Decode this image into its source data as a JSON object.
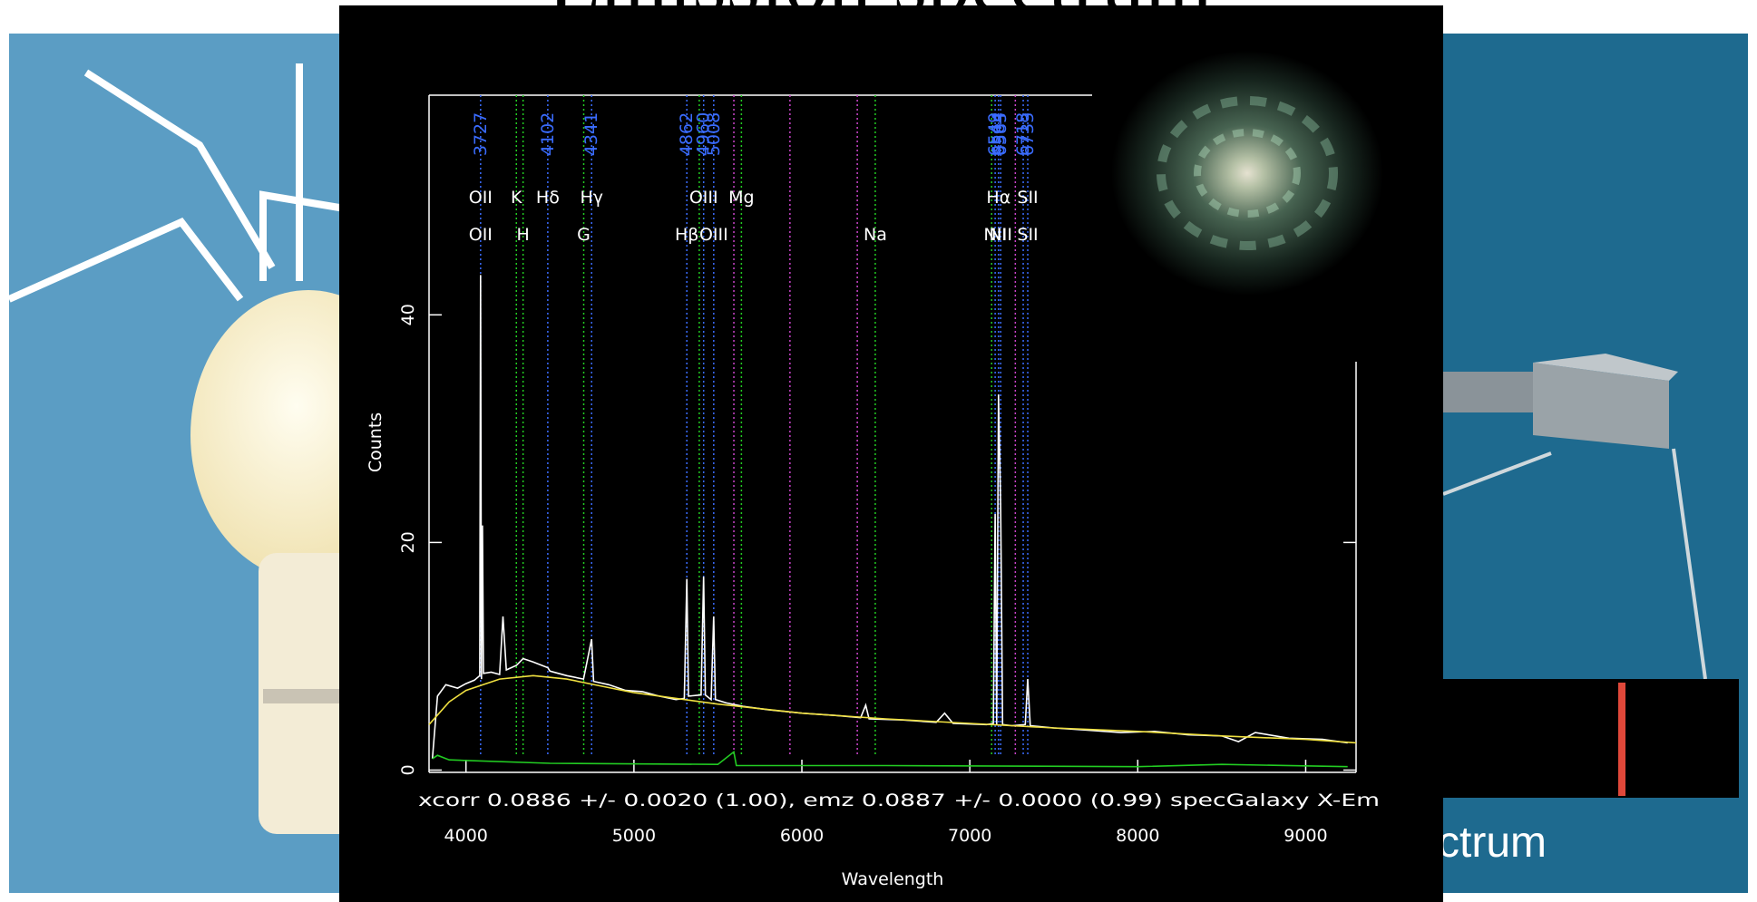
{
  "slide": {
    "title": "Emission spectrum",
    "caption": "Spectrum"
  },
  "chart_data": {
    "type": "line",
    "x_label": "Wavelength",
    "y_label": "Counts",
    "annotation": "xcorr  0.0886 +/- 0.0020 (1.00), emz  0.0887 +/- 0.0000 (0.99) specGalaxy X-Em",
    "xlim": [
      3780,
      9300
    ],
    "ylim": [
      -0.2,
      59.3
    ],
    "xticks": [
      4000,
      5000,
      6000,
      7000,
      8000,
      9000
    ],
    "yticks": [
      0,
      20,
      40
    ],
    "series": [
      {
        "color": "#ffffff",
        "x": [
          3800,
          3830,
          3880,
          3950,
          4000,
          4050,
          4082,
          4087,
          4092,
          4098,
          4104,
          4150,
          4200,
          4220,
          4240,
          4300,
          4340,
          4400,
          4487,
          4500,
          4600,
          4700,
          4748,
          4760,
          4850,
          4950,
          5050,
          5150,
          5250,
          5300,
          5315,
          5325,
          5400,
          5415,
          5425,
          5460,
          5475,
          5485,
          5550,
          5650,
          5800,
          6000,
          6200,
          6350,
          6380,
          6400,
          6600,
          6800,
          6850,
          6900,
          7100,
          7140,
          7151,
          7160,
          7171,
          7184,
          7195,
          7250,
          7330,
          7345,
          7360,
          7500,
          7700,
          7900,
          8100,
          8300,
          8500,
          8600,
          8700,
          8900,
          9100,
          9250
        ],
        "values": [
          1,
          6.5,
          7.5,
          7.2,
          7.6,
          7.9,
          8.3,
          43.5,
          8,
          21.5,
          8.5,
          8.6,
          8.4,
          13.5,
          8.8,
          9.2,
          9.8,
          9.5,
          9,
          8.7,
          8.3,
          8,
          11.5,
          7.8,
          7.5,
          7,
          6.9,
          6.5,
          6.2,
          6.3,
          16.8,
          6.5,
          6.6,
          17,
          6.6,
          6.2,
          13.5,
          6.2,
          5.9,
          5.6,
          5.3,
          5,
          4.8,
          4.6,
          5.7,
          4.5,
          4.4,
          4.2,
          5,
          4.1,
          4,
          4.1,
          22.5,
          4,
          33,
          23,
          4,
          3.9,
          4,
          8,
          3.9,
          3.7,
          3.5,
          3.3,
          3.4,
          3.1,
          3,
          2.5,
          3.3,
          2.8,
          2.7,
          2.4
        ]
      },
      {
        "color": "#f0e040",
        "x": [
          3780,
          3900,
          4000,
          4200,
          4400,
          4600,
          4800,
          5000,
          5500,
          6000,
          6500,
          7000,
          7500,
          8000,
          8500,
          9000,
          9300
        ],
        "values": [
          4,
          6,
          7,
          8,
          8.3,
          8,
          7.4,
          6.8,
          5.8,
          5,
          4.5,
          4.1,
          3.7,
          3.4,
          3,
          2.7,
          2.4
        ]
      },
      {
        "color": "#22cc22",
        "x": [
          3800,
          3830,
          3900,
          4500,
          5500,
          5595,
          5610,
          6500,
          8000,
          8500,
          9250
        ],
        "values": [
          1,
          1.3,
          0.9,
          0.6,
          0.5,
          1.6,
          0.4,
          0.4,
          0.3,
          0.5,
          0.3
        ]
      }
    ],
    "line_markers": [
      {
        "x": 4087,
        "color": "#3a6cff"
      },
      {
        "x": 4487,
        "color": "#3a6cff"
      },
      {
        "x": 4748,
        "color": "#3a6cff"
      },
      {
        "x": 5315,
        "color": "#3a6cff"
      },
      {
        "x": 5415,
        "color": "#3a6cff"
      },
      {
        "x": 5475,
        "color": "#3a6cff"
      },
      {
        "x": 7151,
        "color": "#3a6cff"
      },
      {
        "x": 7171,
        "color": "#3a6cff"
      },
      {
        "x": 7184,
        "color": "#3a6cff"
      },
      {
        "x": 7318,
        "color": "#3a6cff"
      },
      {
        "x": 7345,
        "color": "#3a6cff"
      },
      {
        "x": 4300,
        "color": "#22cc22"
      },
      {
        "x": 4340,
        "color": "#22cc22"
      },
      {
        "x": 4701,
        "color": "#22cc22"
      },
      {
        "x": 5389,
        "color": "#22cc22"
      },
      {
        "x": 5640,
        "color": "#22cc22"
      },
      {
        "x": 6437,
        "color": "#22cc22"
      },
      {
        "x": 7130,
        "color": "#22cc22"
      },
      {
        "x": 5595,
        "color": "#cc44cc"
      },
      {
        "x": 5929,
        "color": "#cc44cc"
      },
      {
        "x": 6330,
        "color": "#cc44cc"
      },
      {
        "x": 7271,
        "color": "#cc44cc"
      }
    ],
    "wavelength_labels": [
      {
        "text": "3727",
        "x": 4087
      },
      {
        "text": "4102",
        "x": 4487
      },
      {
        "text": "4341",
        "x": 4748
      },
      {
        "text": "4862",
        "x": 5315
      },
      {
        "text": "4960",
        "x": 5415
      },
      {
        "text": "5008",
        "x": 5475
      },
      {
        "text": "6549",
        "x": 7151
      },
      {
        "text": "6564",
        "x": 7171
      },
      {
        "text": "6585",
        "x": 7184
      },
      {
        "text": "6718",
        "x": 7318
      },
      {
        "text": "6733",
        "x": 7345
      }
    ],
    "labels_upper": [
      {
        "text": "OII",
        "x": 4087
      },
      {
        "text": "K",
        "x": 4300
      },
      {
        "text": "Hδ",
        "x": 4487
      },
      {
        "text": "Hγ",
        "x": 4748
      },
      {
        "text": "OIII",
        "x": 5415
      },
      {
        "text": "Mg",
        "x": 5640
      },
      {
        "text": "Hα",
        "x": 7171
      },
      {
        "text": "SII",
        "x": 7345
      }
    ],
    "labels_lower": [
      {
        "text": "OII",
        "x": 4087
      },
      {
        "text": "H",
        "x": 4340
      },
      {
        "text": "G",
        "x": 4701
      },
      {
        "text": "Hβ",
        "x": 5315
      },
      {
        "text": "OIII",
        "x": 5475
      },
      {
        "text": "Na",
        "x": 6437
      },
      {
        "text": "NII",
        "x": 7151
      },
      {
        "text": "NII",
        "x": 7184
      },
      {
        "text": "SII",
        "x": 7345
      }
    ]
  }
}
